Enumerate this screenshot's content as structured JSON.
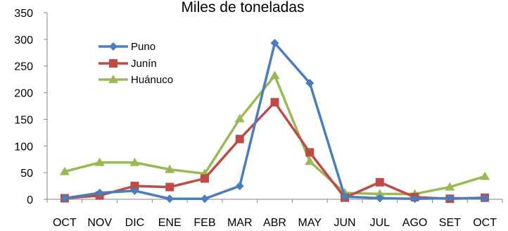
{
  "chart_data": {
    "type": "line",
    "title": "Miles de toneladas",
    "xlabel": "",
    "ylabel": "",
    "categories": [
      "OCT",
      "NOV",
      "DIC",
      "ENE",
      "FEB",
      "MAR",
      "ABR",
      "MAY",
      "JUN",
      "JUL",
      "AGO",
      "SET",
      "OCT"
    ],
    "ylim": [
      0,
      350
    ],
    "yticks": [
      "0",
      "50",
      "100",
      "150",
      "200",
      "250",
      "300",
      "350"
    ],
    "grid": false,
    "legend": "top-left",
    "series": [
      {
        "name": "Puno",
        "color": "#4A7EBB",
        "marker": "diamond",
        "values": [
          2,
          12,
          16,
          1,
          1,
          25,
          293,
          218,
          5,
          2,
          1,
          2,
          2
        ]
      },
      {
        "name": "Junín",
        "color": "#BE4B48",
        "marker": "square",
        "values": [
          2,
          7,
          25,
          23,
          39,
          113,
          182,
          88,
          3,
          32,
          4,
          1,
          3
        ]
      },
      {
        "name": "Huánuco",
        "color": "#98B954",
        "marker": "triangle",
        "values": [
          52,
          69,
          69,
          56,
          48,
          151,
          232,
          71,
          12,
          10,
          10,
          23,
          43
        ]
      }
    ]
  }
}
